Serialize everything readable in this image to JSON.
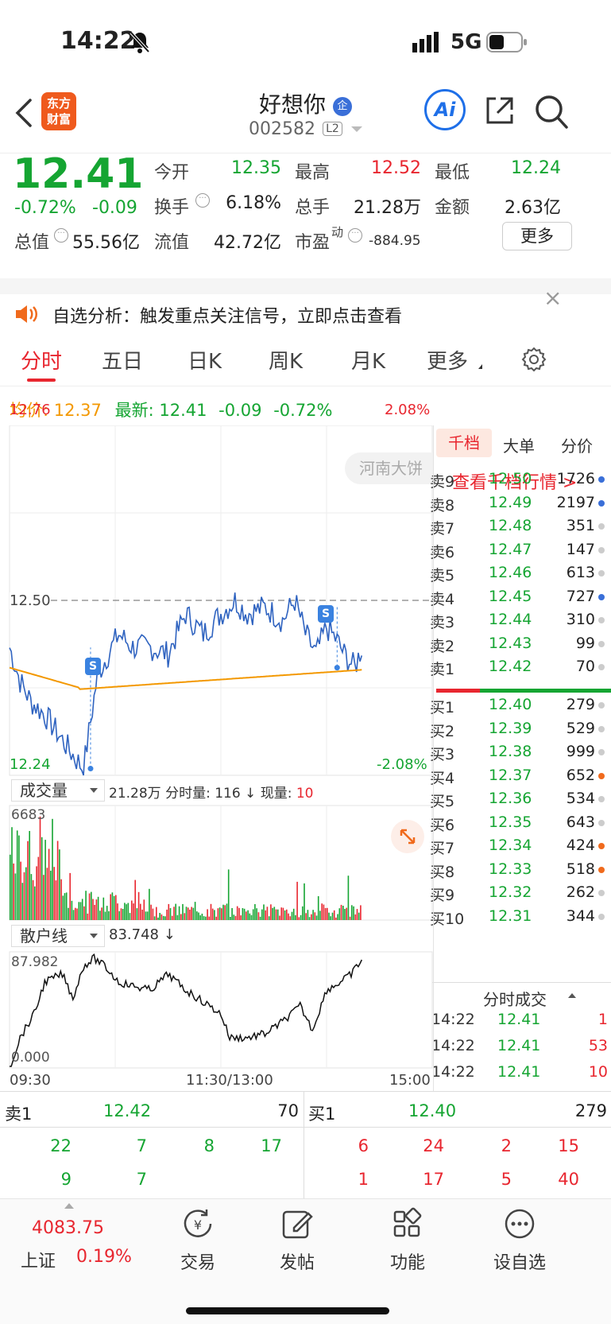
{
  "status_bar": {
    "time": "14:22",
    "network": "5G"
  },
  "header": {
    "app_logo": "东方\n财富",
    "stock_name": "好想你",
    "badge": "企",
    "stock_code": "002582",
    "level": "L2",
    "ai_label": "Ai"
  },
  "quote": {
    "price": "12.41",
    "change_pct": "-0.72%",
    "change": "-0.09",
    "open_label": "今开",
    "open": "12.35",
    "high_label": "最高",
    "high": "12.52",
    "low_label": "最低",
    "low": "12.24",
    "turnover_label": "换手",
    "turnover": "6.18%",
    "volume_label": "总手",
    "volume": "21.28万",
    "amount_label": "金额",
    "amount": "2.63亿",
    "mktcap_label": "总值",
    "mktcap": "55.56亿",
    "float_label": "流值",
    "float": "42.72亿",
    "pe_label": "市盈",
    "pe_sup": "动",
    "pe": "-884.95",
    "more_button": "更多"
  },
  "notice": {
    "text": "自选分析：触发重点关注信号，立即点击查看"
  },
  "tabs": [
    "分时",
    "五日",
    "日K",
    "周K",
    "月K",
    "更多"
  ],
  "avg_bar": {
    "avg_label": "均价:",
    "avg": "12.37",
    "latest_label": "最新:",
    "latest": "12.41",
    "change": "-0.09",
    "pct": "-0.72%"
  },
  "chart": {
    "price_top": "12.76",
    "price_bottom": "12.24",
    "pct_top": "2.08%",
    "pct_bottom": "-2.08%",
    "ref_price": "12.50",
    "tooltip": "河南大饼",
    "volume_label": "成交量",
    "volume_info": "21.28万 分时量: 116 ↓ 现量:",
    "volume_now": "10",
    "volume_max": "6683",
    "retail_label": "散户线",
    "retail_value": "83.748 ↓",
    "retail_top": "87.982",
    "retail_bottom": "0.000",
    "time_start": "09:30",
    "time_mid": "11:30/13:00",
    "time_end": "15:00",
    "signal": "S"
  },
  "book": {
    "tabs": [
      "千档",
      "大单",
      "分价"
    ],
    "link": "查看千档行情 >",
    "asks": [
      {
        "label": "卖9",
        "price": "12.50",
        "vol": "1726",
        "dot": "#3a6fd8"
      },
      {
        "label": "卖8",
        "price": "12.49",
        "vol": "2197",
        "dot": "#3a6fd8"
      },
      {
        "label": "卖7",
        "price": "12.48",
        "vol": "351",
        "dot": "#ccc"
      },
      {
        "label": "卖6",
        "price": "12.47",
        "vol": "147",
        "dot": "#ccc"
      },
      {
        "label": "卖5",
        "price": "12.46",
        "vol": "613",
        "dot": "#ccc"
      },
      {
        "label": "卖4",
        "price": "12.45",
        "vol": "727",
        "dot": "#3a6fd8"
      },
      {
        "label": "卖3",
        "price": "12.44",
        "vol": "310",
        "dot": "#ccc"
      },
      {
        "label": "卖2",
        "price": "12.43",
        "vol": "99",
        "dot": "#ccc"
      },
      {
        "label": "卖1",
        "price": "12.42",
        "vol": "70",
        "dot": "#ccc"
      }
    ],
    "bids": [
      {
        "label": "买1",
        "price": "12.40",
        "vol": "279",
        "dot": "#ccc"
      },
      {
        "label": "买2",
        "price": "12.39",
        "vol": "529",
        "dot": "#ccc"
      },
      {
        "label": "买3",
        "price": "12.38",
        "vol": "999",
        "dot": "#ccc"
      },
      {
        "label": "买4",
        "price": "12.37",
        "vol": "652",
        "dot": "#f06a1c"
      },
      {
        "label": "买5",
        "price": "12.36",
        "vol": "534",
        "dot": "#ccc"
      },
      {
        "label": "买6",
        "price": "12.35",
        "vol": "643",
        "dot": "#ccc"
      },
      {
        "label": "买7",
        "price": "12.34",
        "vol": "424",
        "dot": "#f06a1c"
      },
      {
        "label": "买8",
        "price": "12.33",
        "vol": "518",
        "dot": "#f06a1c"
      },
      {
        "label": "买9",
        "price": "12.32",
        "vol": "262",
        "dot": "#ccc"
      },
      {
        "label": "买10",
        "price": "12.31",
        "vol": "344",
        "dot": "#ccc"
      }
    ],
    "trades_label": "分时成交",
    "trades": [
      {
        "time": "14:22",
        "price": "12.41",
        "vol": "1"
      },
      {
        "time": "14:22",
        "price": "12.41",
        "vol": "53"
      },
      {
        "time": "14:22",
        "price": "12.41",
        "vol": "10"
      }
    ]
  },
  "bottom_book": {
    "ask_label": "卖1",
    "ask_price": "12.42",
    "ask_vol": "70",
    "bid_label": "买1",
    "bid_price": "12.40",
    "bid_vol": "279",
    "ask_orders": [
      "22",
      "7",
      "8",
      "17",
      "9",
      "7"
    ],
    "bid_orders": [
      "6",
      "24",
      "2",
      "15",
      "1",
      "17",
      "5",
      "40"
    ]
  },
  "tabbar": {
    "index_value": "4083.75",
    "index_name": "上证",
    "index_pct": "0.19%",
    "items": [
      "交易",
      "发帖",
      "功能",
      "设自选"
    ]
  }
}
